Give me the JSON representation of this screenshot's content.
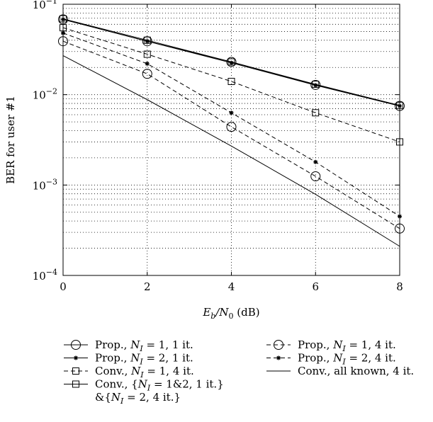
{
  "chart_data": {
    "type": "line",
    "ylabel": "BER for user #1",
    "xlabel": "E_b/N_0 (dB)",
    "xlim": [
      0,
      8
    ],
    "ylim": [
      0.0001,
      0.1
    ],
    "yscale": "log",
    "grid": true,
    "x": [
      0,
      2,
      4,
      6,
      8
    ],
    "x_ticks": [
      "0",
      "2",
      "4",
      "6",
      "8"
    ],
    "y_ticks": [
      {
        "base": "10",
        "exp": "−1",
        "value": 0.1
      },
      {
        "base": "10",
        "exp": "−2",
        "value": 0.01
      },
      {
        "base": "10",
        "exp": "−3",
        "value": 0.001
      },
      {
        "base": "10",
        "exp": "−4",
        "value": 0.0001
      }
    ],
    "series": [
      {
        "name": "Prop., N_I = 1, 1 it.",
        "marker": "circle",
        "dash": "solid",
        "values": [
          0.068,
          0.039,
          0.023,
          0.0128,
          0.0075
        ]
      },
      {
        "name": "Prop., N_I = 2, 1 it.",
        "marker": "star",
        "dash": "solid",
        "values": [
          0.068,
          0.039,
          0.0225,
          0.0127,
          0.0075
        ]
      },
      {
        "name": "Conv., N_I = 1, 4 it.",
        "marker": "square",
        "dash": "dashed",
        "values": [
          0.055,
          0.028,
          0.014,
          0.0063,
          0.003
        ]
      },
      {
        "name": "Conv., {N_I = 1&2, 1 it.} &{N_I = 2, 4 it.}",
        "marker": "square",
        "dash": "solid",
        "values": [
          0.069,
          0.04,
          0.023,
          0.013,
          0.0076
        ]
      },
      {
        "name": "Prop., N_I = 1, 4 it.",
        "marker": "circle",
        "dash": "dashed",
        "values": [
          0.039,
          0.017,
          0.0044,
          0.00125,
          0.00033
        ]
      },
      {
        "name": "Prop., N_I = 2, 4 it.",
        "marker": "star",
        "dash": "dashed",
        "values": [
          0.048,
          0.022,
          0.0063,
          0.0018,
          0.00045
        ]
      },
      {
        "name": "Conv., all known, 4 it.",
        "marker": "none",
        "dash": "solid",
        "values": [
          0.027,
          0.0088,
          0.0027,
          0.00079,
          0.00021
        ]
      }
    ]
  },
  "legend": {
    "placement": "bottom",
    "entries": [
      {
        "prefix": "Prop., ",
        "var": "N",
        "sub": "I",
        "suffix": " = 1, 1 it.",
        "marker": "circle",
        "dash": "solid"
      },
      {
        "prefix": "Prop., ",
        "var": "N",
        "sub": "I",
        "suffix": " = 2, 1 it.",
        "marker": "star",
        "dash": "solid"
      },
      {
        "prefix": "Conv., ",
        "var": "N",
        "sub": "I",
        "suffix": " = 1, 4 it.",
        "marker": "square",
        "dash": "dashed"
      },
      {
        "prefix": "Conv., {",
        "var": "N",
        "sub": "I",
        "suffix": " = 1&2, 1 it.}",
        "marker": "square",
        "dash": "solid",
        "line2_prefix": "&{",
        "line2_var": "N",
        "line2_sub": "I",
        "line2_suffix": " = 2, 4 it.}"
      },
      {
        "prefix": "Prop., ",
        "var": "N",
        "sub": "I",
        "suffix": " = 1, 4 it.",
        "marker": "circle",
        "dash": "dashed"
      },
      {
        "prefix": "Prop., ",
        "var": "N",
        "sub": "I",
        "suffix": " = 2, 4 it.",
        "marker": "star",
        "dash": "dashed"
      },
      {
        "prefix": "Conv., all known, 4 it.",
        "var": "",
        "sub": "",
        "suffix": "",
        "marker": "none",
        "dash": "solid"
      }
    ]
  }
}
